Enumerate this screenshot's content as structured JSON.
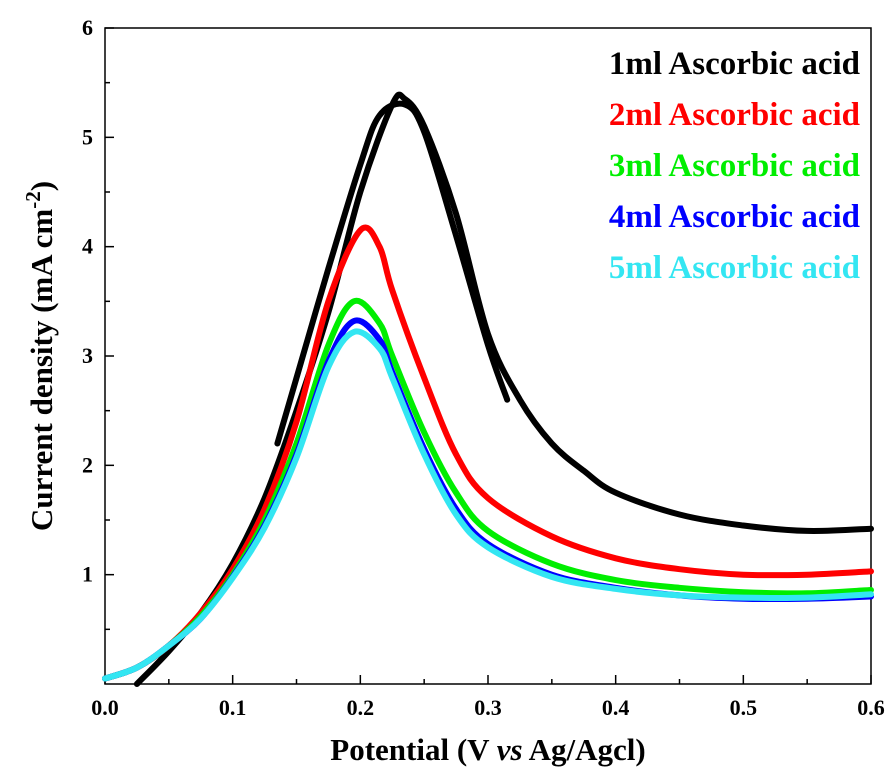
{
  "chart_data": {
    "type": "line",
    "xlabel": {
      "prefix": "Potential (V ",
      "italic": "vs",
      "suffix": " Ag/Agcl)"
    },
    "ylabel": {
      "main": "Current density (mA cm",
      "sup": "-2",
      "close": ")"
    },
    "xlim": [
      0.0,
      0.6
    ],
    "ylim": [
      0.0,
      6.0
    ],
    "x_ticks": [
      "0.0",
      "0.1",
      "0.2",
      "0.3",
      "0.4",
      "0.5",
      "0.6"
    ],
    "y_ticks": [
      "1",
      "2",
      "3",
      "4",
      "5",
      "6"
    ],
    "grid": false,
    "legend_position": "top-right",
    "series": [
      {
        "name": "1ml Ascorbic acid",
        "color": "#000000",
        "segments": [
          [
            [
              0.025,
              0.0
            ],
            [
              0.05,
              0.3
            ],
            [
              0.075,
              0.65
            ],
            [
              0.1,
              1.1
            ],
            [
              0.125,
              1.7
            ],
            [
              0.15,
              2.5
            ],
            [
              0.175,
              3.4
            ],
            [
              0.2,
              4.5
            ],
            [
              0.225,
              5.3
            ],
            [
              0.235,
              5.35
            ],
            [
              0.25,
              5.1
            ],
            [
              0.275,
              4.3
            ],
            [
              0.3,
              3.2
            ],
            [
              0.325,
              2.6
            ],
            [
              0.35,
              2.2
            ],
            [
              0.375,
              1.95
            ],
            [
              0.4,
              1.75
            ],
            [
              0.45,
              1.55
            ],
            [
              0.5,
              1.45
            ],
            [
              0.55,
              1.4
            ],
            [
              0.6,
              1.42
            ]
          ],
          [
            [
              0.135,
              2.2
            ],
            [
              0.15,
              2.8
            ],
            [
              0.175,
              3.8
            ],
            [
              0.2,
              4.75
            ],
            [
              0.215,
              5.2
            ],
            [
              0.235,
              5.3
            ],
            [
              0.25,
              5.05
            ],
            [
              0.275,
              4.1
            ],
            [
              0.3,
              3.1
            ],
            [
              0.315,
              2.6
            ]
          ]
        ]
      },
      {
        "name": "2ml Ascorbic acid",
        "color": "#ff0000",
        "segments": [
          [
            [
              0.0,
              0.05
            ],
            [
              0.025,
              0.15
            ],
            [
              0.05,
              0.35
            ],
            [
              0.075,
              0.65
            ],
            [
              0.1,
              1.05
            ],
            [
              0.125,
              1.6
            ],
            [
              0.15,
              2.4
            ],
            [
              0.175,
              3.5
            ],
            [
              0.2,
              4.15
            ],
            [
              0.215,
              4.0
            ],
            [
              0.225,
              3.6
            ],
            [
              0.25,
              2.8
            ],
            [
              0.275,
              2.1
            ],
            [
              0.3,
              1.7
            ],
            [
              0.35,
              1.35
            ],
            [
              0.4,
              1.15
            ],
            [
              0.45,
              1.05
            ],
            [
              0.5,
              1.0
            ],
            [
              0.55,
              1.0
            ],
            [
              0.6,
              1.03
            ]
          ]
        ]
      },
      {
        "name": "3ml Ascorbic acid",
        "color": "#00ee00",
        "segments": [
          [
            [
              0.0,
              0.05
            ],
            [
              0.025,
              0.15
            ],
            [
              0.05,
              0.35
            ],
            [
              0.075,
              0.62
            ],
            [
              0.1,
              1.0
            ],
            [
              0.125,
              1.5
            ],
            [
              0.15,
              2.2
            ],
            [
              0.175,
              3.1
            ],
            [
              0.195,
              3.5
            ],
            [
              0.215,
              3.3
            ],
            [
              0.225,
              3.0
            ],
            [
              0.25,
              2.3
            ],
            [
              0.275,
              1.75
            ],
            [
              0.3,
              1.4
            ],
            [
              0.35,
              1.1
            ],
            [
              0.4,
              0.95
            ],
            [
              0.45,
              0.88
            ],
            [
              0.5,
              0.84
            ],
            [
              0.55,
              0.83
            ],
            [
              0.6,
              0.86
            ]
          ]
        ]
      },
      {
        "name": "4ml Ascorbic acid",
        "color": "#0000ff",
        "segments": [
          [
            [
              0.0,
              0.05
            ],
            [
              0.025,
              0.15
            ],
            [
              0.05,
              0.35
            ],
            [
              0.075,
              0.6
            ],
            [
              0.1,
              0.98
            ],
            [
              0.125,
              1.45
            ],
            [
              0.15,
              2.1
            ],
            [
              0.175,
              2.95
            ],
            [
              0.195,
              3.32
            ],
            [
              0.215,
              3.15
            ],
            [
              0.225,
              2.85
            ],
            [
              0.25,
              2.15
            ],
            [
              0.275,
              1.6
            ],
            [
              0.3,
              1.28
            ],
            [
              0.35,
              1.0
            ],
            [
              0.4,
              0.88
            ],
            [
              0.45,
              0.81
            ],
            [
              0.5,
              0.78
            ],
            [
              0.55,
              0.78
            ],
            [
              0.6,
              0.8
            ]
          ]
        ]
      },
      {
        "name": "5ml Ascorbic acid",
        "color": "#33e6f2",
        "segments": [
          [
            [
              0.0,
              0.05
            ],
            [
              0.025,
              0.15
            ],
            [
              0.05,
              0.35
            ],
            [
              0.075,
              0.6
            ],
            [
              0.1,
              0.97
            ],
            [
              0.125,
              1.43
            ],
            [
              0.15,
              2.07
            ],
            [
              0.175,
              2.9
            ],
            [
              0.195,
              3.22
            ],
            [
              0.215,
              3.07
            ],
            [
              0.225,
              2.8
            ],
            [
              0.25,
              2.1
            ],
            [
              0.275,
              1.55
            ],
            [
              0.3,
              1.25
            ],
            [
              0.35,
              0.98
            ],
            [
              0.4,
              0.87
            ],
            [
              0.45,
              0.81
            ],
            [
              0.5,
              0.79
            ],
            [
              0.55,
              0.79
            ],
            [
              0.6,
              0.82
            ]
          ]
        ]
      }
    ]
  }
}
